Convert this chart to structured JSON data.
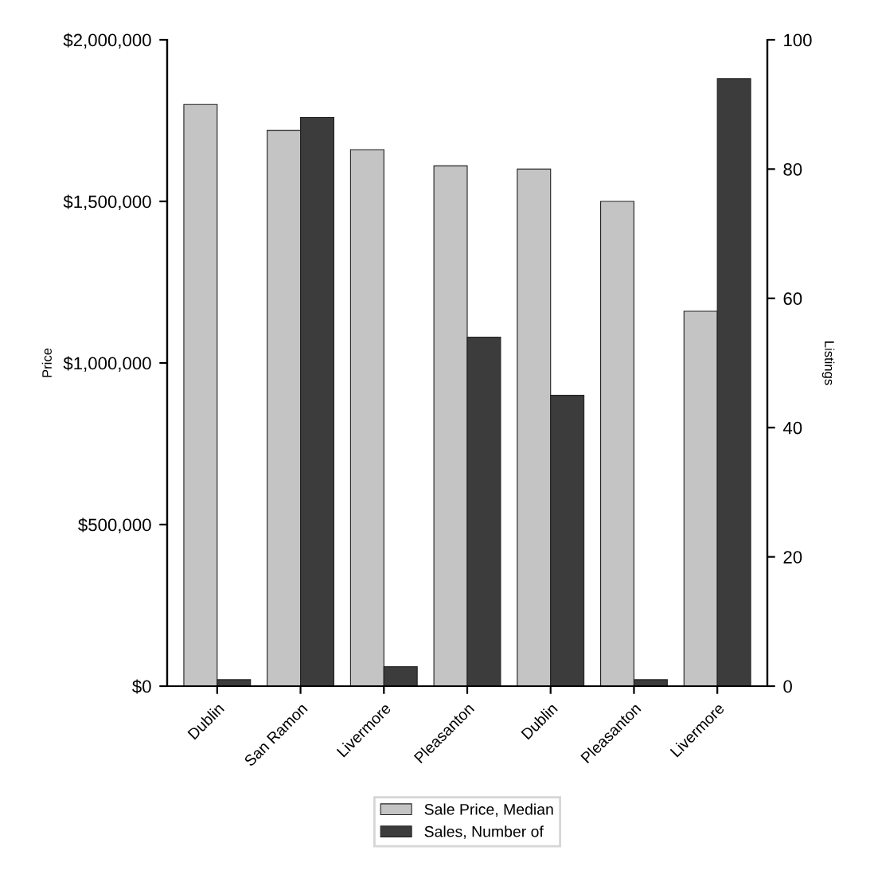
{
  "chart_data": {
    "type": "bar",
    "xlabel": null,
    "ylabel": "Price",
    "y2label": "Listings",
    "categories": [
      "Dublin",
      "San Ramon",
      "Livermore",
      "Pleasanton",
      "Dublin",
      "Pleasanton",
      "Livermore"
    ],
    "series": [
      {
        "name": "Sale Price, Median",
        "color": "#c4c4c4",
        "values": [
          1800000,
          1720000,
          1660000,
          1610000,
          1600000,
          1500000,
          1160000
        ]
      },
      {
        "name": "Sales, Number of",
        "color": "#3c3c3c",
        "axis": "y2",
        "values": [
          1,
          88,
          3,
          54,
          45,
          1,
          94
        ]
      }
    ],
    "ylim": [
      0,
      2000000
    ],
    "yticks": [
      {
        "value": 0,
        "label": "$0"
      },
      {
        "value": 500000,
        "label": "$500,000"
      },
      {
        "value": 1000000,
        "label": "$1,000,000"
      },
      {
        "value": 1500000,
        "label": "$1,500,000"
      },
      {
        "value": 2000000,
        "label": "$2,000,000"
      }
    ],
    "y2lim": [
      0,
      100
    ],
    "y2ticks": [
      0,
      20,
      40,
      60,
      80,
      100
    ],
    "grid": false,
    "legend": "bottom"
  }
}
